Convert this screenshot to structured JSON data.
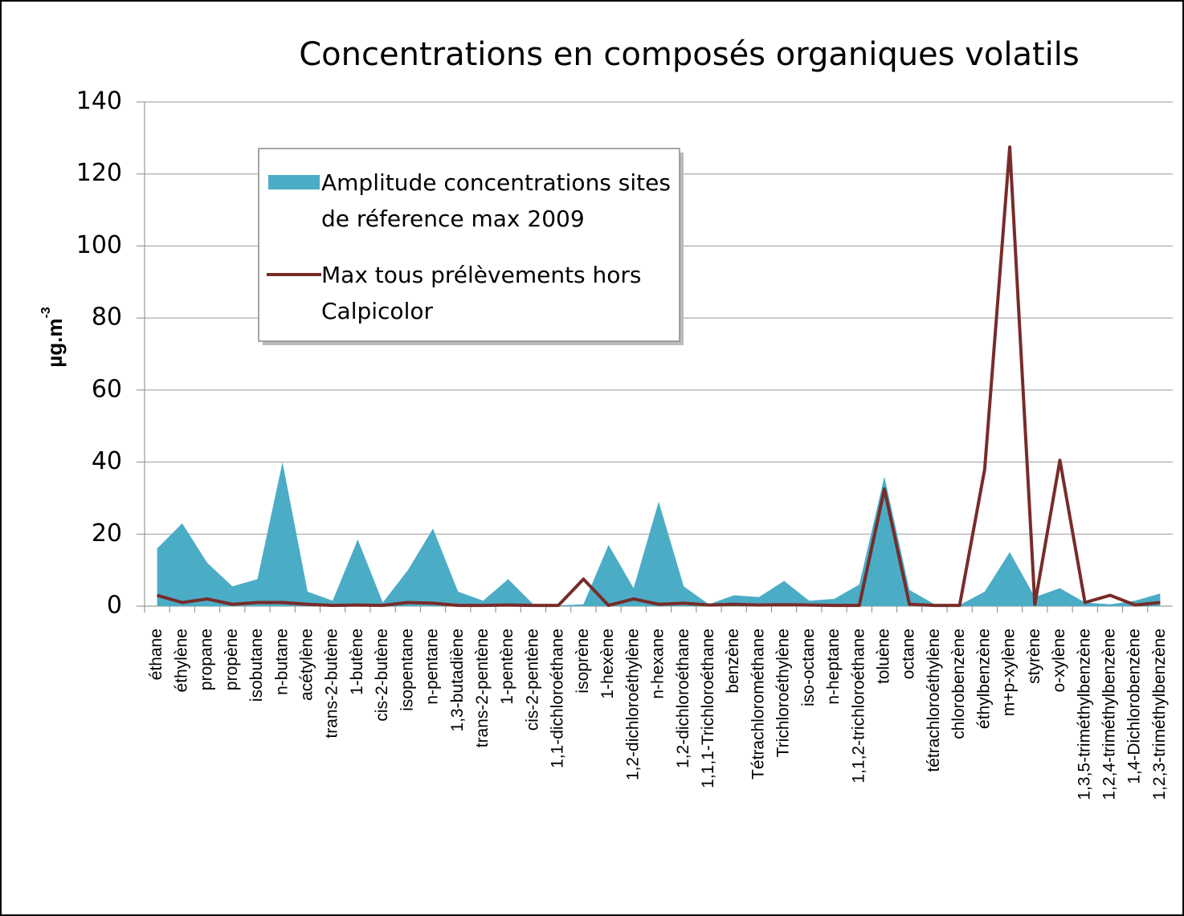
{
  "chart_data": {
    "type": "area-line",
    "title": "Concentrations en composés organiques volatils",
    "y_label": "µg.m",
    "y_label_sup": "-3",
    "categories": [
      "éthane",
      "éthylène",
      "propane",
      "propène",
      "isobutane",
      "n-butane",
      "acétylène",
      "trans-2-butène",
      "1-butène",
      "cis-2-butène",
      "isopentane",
      "n-pentane",
      "1,3-butadiène",
      "trans-2-pentène",
      "1-pentène",
      "cis-2-pentène",
      "1,1-dichloroéthane",
      "isoprène",
      "1-hexène",
      "1,2-dichloroéthylène",
      "n-hexane",
      "1,2-dichloroéthane",
      "1,1,1-Trichloroéthane",
      "benzène",
      "Tétrachlorométhane",
      "Trichloroéthylène",
      "iso-octane",
      "n-heptane",
      "1,1,2-trichloroéthane",
      "toluène",
      "octane",
      "tétrachloroéthylène",
      "chlorobenzène",
      "éthylbenzène",
      "m+p-xylène",
      "styrène",
      "o-xylène",
      "1,3,5-triméthylbenzène",
      "1,2,4-triméthylbenzène",
      "1,4-Dichlorobenzène",
      "1,2,3-triméthylbenzène"
    ],
    "series": [
      {
        "name": "Amplitude concentrations sites de réference max 2009",
        "kind": "area",
        "color": "#4bacc6",
        "values": [
          16,
          23,
          12,
          5.5,
          7.5,
          40,
          4,
          1.5,
          18.5,
          1,
          10,
          21.5,
          4,
          1.5,
          7.5,
          0.5,
          0.2,
          0.5,
          17,
          5,
          29,
          5.5,
          0.5,
          3,
          2.5,
          7,
          1.5,
          2,
          6,
          36,
          4.5,
          0.5,
          0.3,
          4,
          15,
          2.5,
          5,
          1,
          0.5,
          1.5,
          3.5
        ]
      },
      {
        "name": "Max tous prélèvements hors Calpicolor",
        "kind": "line",
        "color": "#772c2a",
        "values": [
          3,
          1,
          2,
          0.5,
          1,
          1,
          0.5,
          0.2,
          0.3,
          0.2,
          1,
          0.8,
          0.2,
          0.2,
          0.3,
          0.2,
          0.2,
          7.5,
          0.2,
          2,
          0.5,
          0.8,
          0.3,
          0.5,
          0.3,
          0.4,
          0.3,
          0.2,
          0.2,
          32.5,
          0.5,
          0.2,
          0.2,
          38,
          127.5,
          0.5,
          40.5,
          1,
          3,
          0.3,
          1
        ]
      }
    ],
    "ylim": [
      0,
      140
    ],
    "yticks": [
      0,
      20,
      40,
      60,
      80,
      100,
      120,
      140
    ],
    "grid": true,
    "legend_position": "upper-left"
  }
}
